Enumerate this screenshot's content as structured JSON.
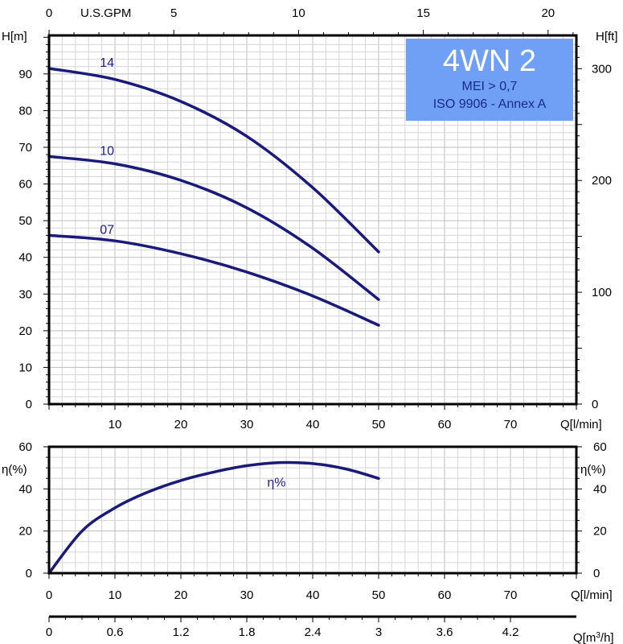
{
  "chart_data": [
    {
      "type": "line",
      "xlabel": "Q[l/min]",
      "ylabel": "H[m]",
      "ylabel_right": "H[ft]",
      "xlabel_top": "U.S.GPM",
      "xlim": [
        0,
        80
      ],
      "ylim": [
        0,
        100
      ],
      "x_ticks": [
        10,
        20,
        30,
        40,
        50,
        60,
        70
      ],
      "y_ticks": [
        0,
        10,
        20,
        30,
        40,
        50,
        60,
        70,
        80,
        90
      ],
      "y_right_ticks": [
        0,
        100,
        200,
        300
      ],
      "x_top_ticks": [
        0,
        5,
        10,
        15,
        20
      ],
      "grid": true,
      "series": [
        {
          "name": "14",
          "x": [
            0,
            10,
            20,
            30,
            40,
            50
          ],
          "values": [
            91.5,
            88.5,
            82.5,
            73,
            59,
            41.5
          ]
        },
        {
          "name": "10",
          "x": [
            0,
            10,
            20,
            30,
            40,
            50
          ],
          "values": [
            67.5,
            65.5,
            61,
            53.5,
            42.5,
            28.5
          ]
        },
        {
          "name": "07",
          "x": [
            0,
            10,
            20,
            30,
            40,
            50
          ],
          "values": [
            46,
            44.5,
            41,
            36,
            29.5,
            21.5
          ]
        }
      ],
      "badge": {
        "title": "4WN 2",
        "line1": "MEI > 0,7",
        "line2": "ISO 9906 - Annex A",
        "color": "#6fa0f5"
      }
    },
    {
      "type": "line",
      "xlabel": "Q[l/min]",
      "ylabel": "η(%)",
      "ylabel_right": "η(%)",
      "xlim": [
        0,
        80
      ],
      "ylim": [
        0,
        60
      ],
      "x_ticks": [
        0,
        10,
        20,
        30,
        40,
        50,
        60,
        70
      ],
      "y_ticks": [
        0,
        20,
        40,
        60
      ],
      "grid": true,
      "series": [
        {
          "name": "η%",
          "x": [
            0,
            5,
            10,
            15,
            20,
            25,
            30,
            35,
            40,
            45,
            50
          ],
          "values": [
            0,
            20,
            31,
            38.5,
            44,
            48,
            51,
            52.5,
            52,
            49.5,
            45
          ]
        }
      ]
    },
    {
      "type": "axis",
      "xlabel": "Q[m³/h]",
      "xlabel_base": "Q[m",
      "xlabel_sup": "3",
      "xlabel_end": "/h]",
      "x_ticks": [
        "0",
        "0.6",
        "1.2",
        "1.8",
        "2.4",
        "3",
        "3.6",
        "4.2"
      ]
    }
  ],
  "colors": {
    "curve": "#1a1a7a",
    "label": "#1a1a8c",
    "badge": "#6fa0f5"
  }
}
